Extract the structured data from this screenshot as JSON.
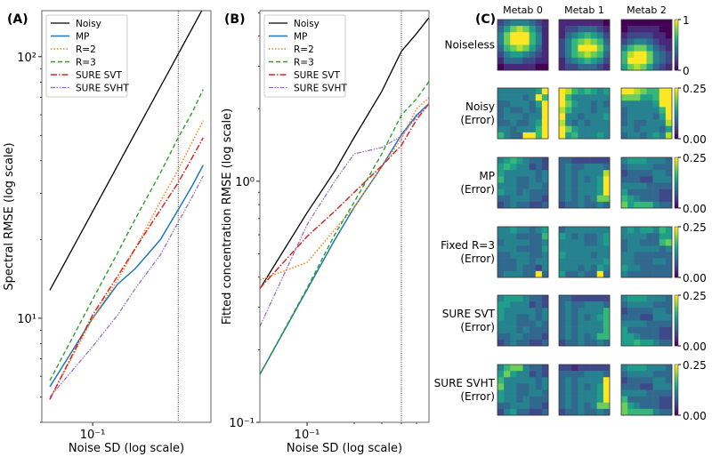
{
  "colors": {
    "Noisy": "#000000",
    "MP": "#1f77b4",
    "R=2": "#ff7f0e",
    "R=3": "#2ca02c",
    "SURE SVT": "#d62728",
    "SURE SVHT": "#9467bd"
  },
  "chart_data": [
    {
      "type": "line",
      "panel_label": "(A)",
      "xlabel": "Noise SD (log scale)",
      "ylabel": "Spectral RMSE (log scale)",
      "xscale": "log",
      "yscale": "log",
      "xlim": [
        0.0439,
        0.68
      ],
      "ylim": [
        4.0,
        150
      ],
      "xticks": [
        {
          "value": 0.1,
          "label": "10⁻¹"
        }
      ],
      "yticks": [
        {
          "value": 10,
          "label": "10¹"
        },
        {
          "value": 100,
          "label": "10²"
        }
      ],
      "vline": 0.4,
      "legend": "top-left",
      "x": [
        0.05,
        0.1,
        0.15,
        0.2,
        0.3,
        0.4,
        0.5,
        0.6
      ],
      "series": [
        {
          "name": "Noisy",
          "values": [
            12.8,
            25.6,
            38.4,
            51.2,
            76.8,
            102.4,
            128,
            153.6
          ]
        },
        {
          "name": "MP",
          "values": [
            5.47,
            10.0,
            13.5,
            15.5,
            20.0,
            26.0,
            32.0,
            38.5
          ]
        },
        {
          "name": "R=2",
          "values": [
            4.9,
            10.0,
            14.0,
            18.5,
            28.0,
            37.0,
            47.0,
            57.0
          ]
        },
        {
          "name": "R=3",
          "values": [
            5.78,
            11.8,
            17.8,
            24.0,
            36.0,
            49.0,
            61.0,
            75.0
          ]
        },
        {
          "name": "SURE SVT",
          "values": [
            4.9,
            10.3,
            14.5,
            18.5,
            26.0,
            33.0,
            41.0,
            49.0
          ]
        },
        {
          "name": "SURE SVHT",
          "values": [
            5.0,
            7.8,
            10.3,
            13.0,
            17.5,
            23.3,
            29.0,
            35.0
          ]
        }
      ]
    },
    {
      "type": "line",
      "panel_label": "(B)",
      "xlabel": "Noise SD (log scale)",
      "ylabel": "Fitted concentration RMSE (log scale)",
      "xscale": "log",
      "yscale": "log",
      "xlim": [
        0.05,
        0.6
      ],
      "ylim": [
        0.1,
        5.1
      ],
      "xticks": [
        {
          "value": 0.1,
          "label": "10⁻¹"
        }
      ],
      "yticks": [
        {
          "value": 0.1,
          "label": "10⁻¹"
        },
        {
          "value": 1,
          "label": "10⁰"
        }
      ],
      "vline": 0.4,
      "legend": "top-left",
      "x": [
        0.05,
        0.1,
        0.15,
        0.2,
        0.3,
        0.4,
        0.5,
        0.6
      ],
      "series": [
        {
          "name": "Noisy",
          "values": [
            0.358,
            0.74,
            1.1,
            1.52,
            2.36,
            3.46,
            4.1,
            4.77
          ]
        },
        {
          "name": "MP",
          "values": [
            0.158,
            0.355,
            0.57,
            0.78,
            1.15,
            1.56,
            1.88,
            2.1
          ]
        },
        {
          "name": "R=2",
          "values": [
            0.39,
            0.46,
            0.63,
            0.78,
            1.15,
            1.5,
            2.0,
            2.22
          ]
        },
        {
          "name": "R=3",
          "values": [
            0.158,
            0.36,
            0.6,
            0.82,
            1.3,
            1.88,
            2.2,
            2.59
          ]
        },
        {
          "name": "SURE SVT",
          "values": [
            0.36,
            0.59,
            0.75,
            0.9,
            1.16,
            1.41,
            1.8,
            2.1
          ]
        },
        {
          "name": "SURE SVHT",
          "values": [
            0.25,
            0.66,
            1.0,
            1.3,
            1.38,
            1.54,
            1.85,
            2.1
          ]
        }
      ]
    },
    {
      "type": "heatmap",
      "panel_label": "(C)",
      "columns": [
        "Metab 0",
        "Metab 1",
        "Metab 2"
      ],
      "value_scale_note": "digits 0-9 map linearly onto colorbar range",
      "rows": [
        {
          "label": [
            "Noiseless"
          ],
          "range": [
            0,
            1
          ],
          "cbar_labels": [
            "1",
            "0"
          ],
          "maps": [
            [
              "23444321",
              "35787531",
              "47999641",
              "47999641",
              "36787531",
              "24554321",
              "13332211",
              "01111100"
            ],
            [
              "11111110",
              "12233321",
              "13456542",
              "24678763",
              "24699974",
              "24678763",
              "13456542",
              "12233321"
            ],
            [
              "00000000",
              "01111100",
              "12222110",
              "23443211",
              "46775321",
              "68997432",
              "69997432",
              "57875321"
            ]
          ]
        },
        {
          "label": [
            "Noisy",
            "(Error)"
          ],
          "range": [
            0,
            0.25
          ],
          "cbar_labels": [
            "0.25",
            "0.00"
          ],
          "maps": [
            [
              "44444459",
              "44443496",
              "33444359",
              "34334349",
              "34443449",
              "33433459",
              "44344469",
              "64339969"
            ],
            [
              "98656545",
              "96444444",
              "97544343",
              "86444344",
              "94434445",
              "84343444",
              "97544444",
              "95644454"
            ],
            [
              "99876699",
              "77755699",
              "44444599",
              "34444469",
              "34444359",
              "34334448",
              "44344435",
              "34434548"
            ]
          ]
        },
        {
          "label": [
            "MP",
            "(Error)"
          ],
          "range": [
            0,
            0.25
          ],
          "cbar_labels": [
            "0.25",
            "0.00"
          ],
          "maps": [
            [
              "45654332",
              "56544232",
              "54444434",
              "64433434",
              "44433443",
              "54434333",
              "33444332",
              "23433223"
            ],
            [
              "33222222",
              "34334443",
              "34344448",
              "34343459",
              "34344459",
              "34344459",
              "34343477",
              "23343343"
            ],
            [
              "45554443",
              "34444333",
              "23333443",
              "33322444",
              "44443333",
              "53333322",
              "65433322",
              "75666433"
            ]
          ]
        },
        {
          "label": [
            "Fixed R=3",
            "(Error)"
          ],
          "range": [
            0,
            0.25
          ],
          "cbar_labels": [
            "0.25",
            "0.00"
          ],
          "maps": [
            [
              "44544345",
              "44433336",
              "34444334",
              "44433335",
              "33444334",
              "33344344",
              "33343324",
              "34443393"
            ],
            [
              "34444444",
              "54343345",
              "44443345",
              "44444444",
              "54444344",
              "44444445",
              "44434354",
              "53343393"
            ],
            [
              "45455465",
              "44443355",
              "34433367",
              "34444434",
              "44333333",
              "44333443",
              "54433333",
              "43333333"
            ]
          ]
        },
        {
          "label": [
            "SURE SVT",
            "(Error)"
          ],
          "range": [
            0,
            0.25
          ],
          "cbar_labels": [
            "0.25",
            "0.00"
          ],
          "maps": [
            [
              "45554332",
              "55444232",
              "54444434",
              "54433434",
              "44433343",
              "44434333",
              "33443332",
              "23433223"
            ],
            [
              "33222222",
              "34334443",
              "34344446",
              "34343456",
              "34344446",
              "34344446",
              "34343466",
              "23343343"
            ],
            [
              "45554443",
              "34444333",
              "23333443",
              "33322444",
              "44443333",
              "53333322",
              "55433322",
              "55655433"
            ]
          ]
        },
        {
          "label": [
            "SURE SVHT",
            "(Error)"
          ],
          "range": [
            0,
            0.25
          ],
          "cbar_labels": [
            "0.25",
            "0.00"
          ],
          "maps": [
            [
              "46774332",
              "57544232",
              "64444434",
              "74433434",
              "54433443",
              "54434333",
              "33444332",
              "24533223"
            ],
            [
              "22122222",
              "33334443",
              "34344449",
              "34343459",
              "34344459",
              "34344459",
              "34343477",
              "23343343"
            ],
            [
              "45554443",
              "34444333",
              "23333443",
              "33322444",
              "44443333",
              "63333322",
              "75433322",
              "76666433"
            ]
          ]
        }
      ]
    }
  ]
}
